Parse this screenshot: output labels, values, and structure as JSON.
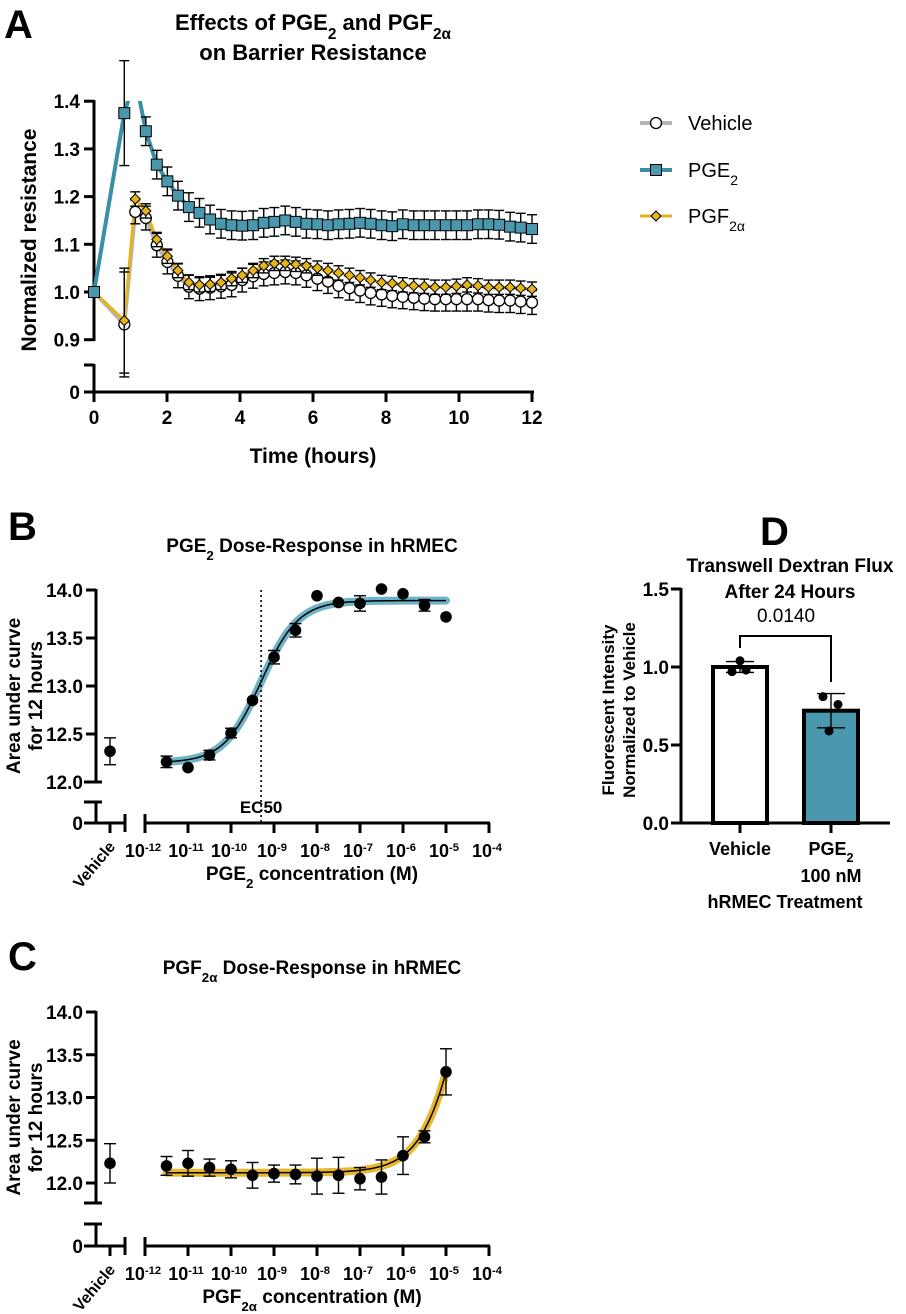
{
  "colors": {
    "vehicle_line": "#b5b5b5",
    "pge2": "#4a98ad",
    "pge2_line": "#3a8fa6",
    "pgf2a": "#e5b31a",
    "pge2_band": "#6fb3c9",
    "pgf2a_band": "#e8b730"
  },
  "chart_data": [
    {
      "panel": "A",
      "type": "line",
      "title": [
        "Effects of PGE2 and PGF2α",
        "on Barrier Resistance"
      ],
      "xlabel": "Time (hours)",
      "ylabel": "Normalized resistance",
      "xlim": [
        0,
        12
      ],
      "x_ticks": [
        "0",
        "2",
        "4",
        "6",
        "8",
        "10",
        "12"
      ],
      "y_ticks_upper": [
        "0.9",
        "1.0",
        "1.1",
        "1.2",
        "1.3",
        "1.4"
      ],
      "y_ticks_lower": [
        "0"
      ],
      "ylim_upper": [
        0.9,
        1.4
      ],
      "legend_position": "right",
      "x": [
        0,
        0.83,
        1.13,
        1.42,
        1.72,
        2.01,
        2.3,
        2.6,
        2.89,
        3.18,
        3.48,
        3.77,
        4.06,
        4.36,
        4.65,
        4.94,
        5.24,
        5.53,
        5.82,
        6.12,
        6.41,
        6.7,
        7.0,
        7.29,
        7.58,
        7.88,
        8.17,
        8.46,
        8.76,
        9.05,
        9.34,
        9.64,
        9.93,
        10.22,
        10.52,
        10.81,
        11.1,
        11.4,
        11.69,
        12.0
      ],
      "series": [
        {
          "name": "Vehicle",
          "error": 0.025,
          "values": [
            1.0,
            0.932,
            1.168,
            1.155,
            1.098,
            1.063,
            1.034,
            1.011,
            1.007,
            1.009,
            1.012,
            1.015,
            1.025,
            1.033,
            1.038,
            1.04,
            1.042,
            1.04,
            1.035,
            1.028,
            1.022,
            1.013,
            1.008,
            1.003,
            0.998,
            0.995,
            0.992,
            0.99,
            0.988,
            0.986,
            0.985,
            0.985,
            0.985,
            0.985,
            0.985,
            0.983,
            0.982,
            0.982,
            0.98,
            0.978
          ]
        },
        {
          "name": "PGE2",
          "error": 0.03,
          "values": [
            1.0,
            1.375,
            1.45,
            1.337,
            1.267,
            1.232,
            1.202,
            1.178,
            1.166,
            1.152,
            1.143,
            1.14,
            1.139,
            1.14,
            1.145,
            1.147,
            1.15,
            1.147,
            1.143,
            1.142,
            1.14,
            1.142,
            1.143,
            1.145,
            1.143,
            1.14,
            1.138,
            1.142,
            1.14,
            1.14,
            1.14,
            1.14,
            1.14,
            1.14,
            1.142,
            1.142,
            1.141,
            1.137,
            1.135,
            1.132
          ]
        },
        {
          "name": "PGF2α",
          "error": 0.015,
          "values": [
            1.0,
            0.94,
            1.195,
            1.17,
            1.11,
            1.075,
            1.045,
            1.02,
            1.015,
            1.016,
            1.02,
            1.028,
            1.035,
            1.045,
            1.055,
            1.06,
            1.06,
            1.058,
            1.055,
            1.05,
            1.045,
            1.04,
            1.035,
            1.03,
            1.025,
            1.02,
            1.018,
            1.015,
            1.013,
            1.012,
            1.01,
            1.01,
            1.012,
            1.015,
            1.013,
            1.01,
            1.01,
            1.01,
            1.008,
            1.006
          ]
        }
      ]
    },
    {
      "panel": "B",
      "type": "scatter",
      "title": "PGE2 Dose-Response in hRMEC",
      "xlabel": "PGE2 concentration (M)",
      "ylabel": [
        "Area under curve",
        "for 12 hours"
      ],
      "x_tick_exponents": [
        -12,
        -11,
        -10,
        -9,
        -8,
        -7,
        -6,
        -5,
        -4
      ],
      "x_tick_base": "10",
      "y_ticks_upper": [
        "12.0",
        "12.5",
        "13.0",
        "13.5",
        "14.0"
      ],
      "y_ticks_lower": [
        "0"
      ],
      "vehicle_label": "Vehicle",
      "vehicle": {
        "value": 12.32,
        "error": 0.14
      },
      "log_x": [
        -11.5,
        -11,
        -10.5,
        -10,
        -9.5,
        -9,
        -8.5,
        -8,
        -7.5,
        -7,
        -6.5,
        -6,
        -5.5,
        -5
      ],
      "values": [
        12.21,
        12.15,
        12.28,
        12.51,
        12.85,
        13.3,
        13.58,
        13.94,
        13.87,
        13.86,
        14.01,
        13.96,
        13.84,
        13.72
      ],
      "errors": [
        0.06,
        0,
        0.05,
        0.05,
        0,
        0.07,
        0.07,
        0,
        0,
        0.08,
        0,
        0,
        0.06,
        0
      ],
      "fit": {
        "bottom": 12.2,
        "top": 13.89,
        "logEC50": -9.3,
        "hill": 1.0
      },
      "ec50_label": "EC50"
    },
    {
      "panel": "C",
      "type": "scatter",
      "title": "PGF2α Dose-Response in hRMEC",
      "xlabel": "PGF2α concentration (M)",
      "ylabel": [
        "Area under curve",
        "for 12 hours"
      ],
      "x_tick_exponents": [
        -12,
        -11,
        -10,
        -9,
        -8,
        -7,
        -6,
        -5,
        -4
      ],
      "x_tick_base": "10",
      "y_ticks_upper": [
        "12.0",
        "12.5",
        "13.0",
        "13.5",
        "14.0"
      ],
      "y_ticks_lower": [
        "0"
      ],
      "vehicle_label": "Vehicle",
      "vehicle": {
        "value": 12.23,
        "error": 0.23
      },
      "log_x": [
        -11.5,
        -11,
        -10.5,
        -10,
        -9.5,
        -9,
        -8.5,
        -8,
        -7.5,
        -7,
        -6.5,
        -6,
        -5.5,
        -5
      ],
      "values": [
        12.2,
        12.23,
        12.18,
        12.16,
        12.09,
        12.11,
        12.1,
        12.08,
        12.09,
        12.05,
        12.07,
        12.32,
        12.54,
        13.3
      ],
      "errors": [
        0.11,
        0.15,
        0.1,
        0.1,
        0.15,
        0.1,
        0.11,
        0.21,
        0.21,
        0.13,
        0.2,
        0.22,
        0.07,
        0.27
      ],
      "fit": {
        "bottom": 12.12,
        "top": 18.12,
        "logEC50": -4.28,
        "hill": 0.85
      }
    },
    {
      "panel": "D",
      "type": "bar",
      "title": [
        "Transwell Dextran Flux",
        "After 24 Hours"
      ],
      "xlabel": "hRMEC Treatment",
      "ylabel": [
        "Fluorescent Intensity",
        "Normalized to Vehicle"
      ],
      "ylim": [
        0,
        1.5
      ],
      "y_ticks": [
        "0.0",
        "0.5",
        "1.0",
        "1.5"
      ],
      "categories": [
        [
          "Vehicle"
        ],
        [
          "PGE2",
          "100 nM"
        ]
      ],
      "values": [
        1.0,
        0.72
      ],
      "errors": [
        0.035,
        0.11
      ],
      "points": [
        [
          0.97,
          1.04,
          0.98
        ],
        [
          0.81,
          0.76,
          0.59
        ]
      ],
      "p_value": "0.0140"
    }
  ],
  "panel_letters": [
    "A",
    "B",
    "C",
    "D"
  ]
}
